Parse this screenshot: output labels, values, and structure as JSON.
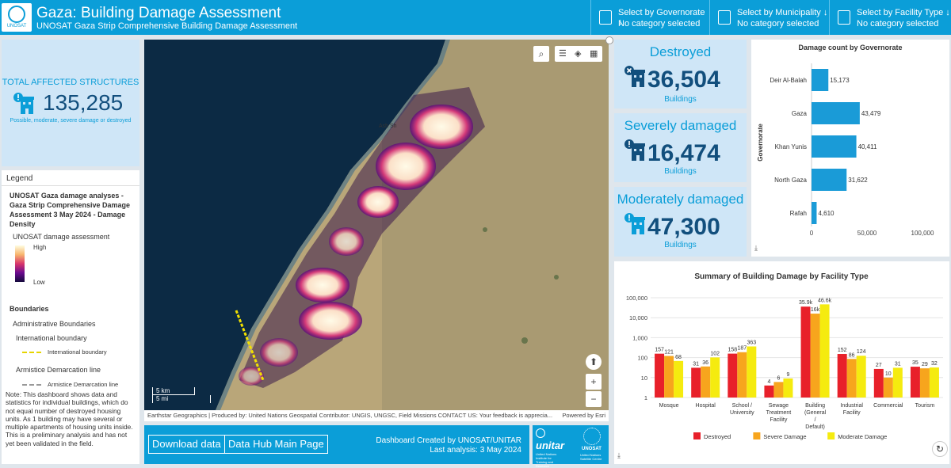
{
  "header": {
    "title": "Gaza: Building Damage Assessment",
    "subtitle": "UNOSAT Gaza Strip Comprehensive Building Damage Assessment",
    "logo_text": "UNOSAT",
    "selectors": [
      {
        "label": "Select by Governorate ↓",
        "value": "No category selected"
      },
      {
        "label": "Select by Municipality ↓",
        "value": "No category selected"
      },
      {
        "label": "Select by Facility Type ↓",
        "value": "No category selected"
      }
    ]
  },
  "total": {
    "label": "TOTAL AFFECTED STRUCTURES",
    "value": "135,285",
    "note": "Possible, moderate, severe damage or destroyed"
  },
  "legend": {
    "header": "Legend",
    "layer_title": "UNOSAT Gaza damage analyses - Gaza Strip Comprehensive Damage Assessment 3 May 2024 - Damage Density",
    "ramp_title": "UNOSAT damage assessment",
    "high": "High",
    "low": "Low",
    "boundaries": "Boundaries",
    "admin": "Administrative Boundaries",
    "intl": "International boundary",
    "intl_item": "International boundary",
    "armistice": "Armistice Demarcation line",
    "armistice_item": "Armistice Demarcation line",
    "note": "Note: This dashboard shows data and statistics for individual buildings, which do not equal number of destroyed housing units. As 1 building may have several or multiple apartments of housing units inside.\nThis is a preliminary analysis and has not yet been validated in the field."
  },
  "map": {
    "place_label": "Ash Sh",
    "scale_km": "5 km",
    "scale_mi": "5 mi",
    "attribution": "Earthstar Geographics | Produced by: United Nations Geospatial Contributor: UNGIS, UNGSC, Field Missions CONTACT US: Your feedback is apprecia...",
    "powered": "Powered by Esri"
  },
  "bottom": {
    "download": "Download data",
    "hub": "Data Hub Main Page",
    "credit_line1": "Dashboard Created by UNOSAT/UNITAR",
    "credit_line2": "Last analysis: 3 May 2024",
    "unitar": "unitar",
    "unitar_sub": "United Nations Institute for Training and Research",
    "unosat": "UNOSAT",
    "unosat_sub": "United Nations Satellite Centre"
  },
  "cards": [
    {
      "caption": "Destroyed",
      "value": "36,504",
      "unit": "Buildings"
    },
    {
      "caption": "Severely damaged",
      "value": "16,474",
      "unit": "Buildings"
    },
    {
      "caption": "Moderately damaged",
      "value": "47,300",
      "unit": "Buildings"
    }
  ],
  "colors": {
    "accent": "#0b9ed8",
    "dark": "#124f7d",
    "bar": "#1a9bd7",
    "destroyed": "#e8202a",
    "severe": "#f7a51d",
    "moderate": "#f5eb0f"
  },
  "chart_data": [
    {
      "type": "bar",
      "orientation": "horizontal",
      "title": "Damage count by Governorate",
      "ylabel": "Governorate",
      "categories": [
        "Deir Al-Balah",
        "Gaza",
        "Khan Yunis",
        "North Gaza",
        "Rafah"
      ],
      "values": [
        15173,
        43479,
        40411,
        31622,
        4610
      ],
      "value_labels": [
        "15,173",
        "43,479",
        "40,411",
        "31,622",
        "4,610"
      ],
      "xlim": [
        0,
        100000
      ],
      "ticks": [
        "0",
        "50,000",
        "100,000"
      ]
    },
    {
      "type": "bar",
      "title": "Summary of Building Damage by Facility Type",
      "yscale": "log",
      "ylim": [
        1,
        100000
      ],
      "ticks": [
        "1",
        "10",
        "100",
        "1,000",
        "10,000",
        "100,000"
      ],
      "categories": [
        [
          "Mosque"
        ],
        [
          "Hospital"
        ],
        [
          "School /",
          "University"
        ],
        [
          "Sewage",
          "Treatment",
          "Facility"
        ],
        [
          "Building",
          "(General",
          "/",
          "Default)"
        ],
        [
          "Industrial",
          "Facility"
        ],
        [
          "Commercial"
        ],
        [
          "Tourism"
        ]
      ],
      "series": [
        {
          "name": "Destroyed",
          "values": [
            157,
            31,
            158,
            4,
            35900,
            152,
            27,
            35
          ],
          "labels": [
            "157",
            "31",
            "158",
            "4",
            "35.9k",
            "152",
            "27",
            "35"
          ]
        },
        {
          "name": "Severe Damage",
          "values": [
            121,
            36,
            187,
            6,
            16000,
            86,
            10,
            29
          ],
          "labels": [
            "121",
            "36",
            "187",
            "6",
            "16k",
            "86",
            "10",
            "29"
          ]
        },
        {
          "name": "Moderate Damage",
          "values": [
            68,
            102,
            363,
            9,
            46600,
            124,
            31,
            32
          ],
          "labels": [
            "68",
            "102",
            "363",
            "9",
            "46.6k",
            "124",
            "31",
            "32"
          ]
        }
      ]
    }
  ]
}
